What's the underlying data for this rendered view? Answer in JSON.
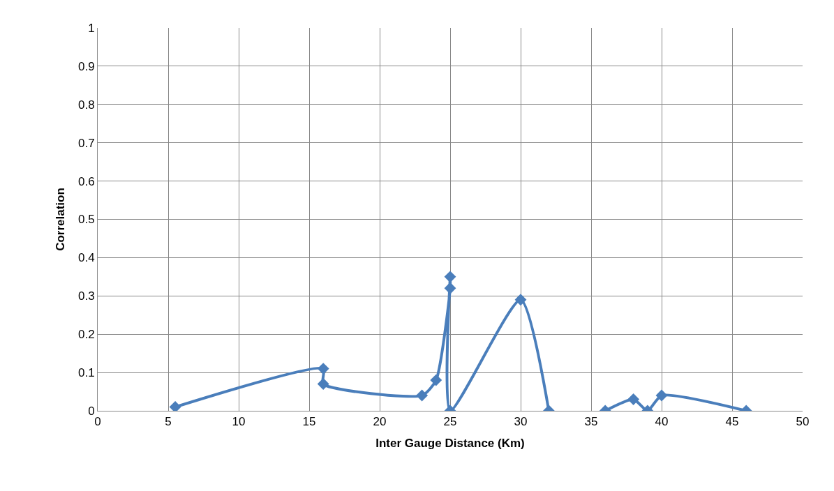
{
  "chart_data": {
    "type": "line",
    "xlabel": "Inter Gauge Distance (Km)",
    "ylabel": "Correlation",
    "series": [
      {
        "color": "#4a7ebb",
        "x": [
          5.5,
          16,
          16,
          23,
          24,
          25,
          25,
          25,
          30,
          32
        ],
        "values": [
          0.01,
          0.11,
          0.07,
          0.04,
          0.08,
          0.32,
          0.35,
          0,
          0.29,
          0
        ]
      },
      {
        "color": "#4a7ebb",
        "x": [
          36,
          38,
          39,
          40,
          46
        ],
        "values": [
          0,
          0.03,
          0,
          0.04,
          0
        ]
      }
    ],
    "xlim": [
      0,
      50
    ],
    "xticks": [
      0,
      5,
      10,
      15,
      20,
      25,
      30,
      35,
      40,
      45,
      50
    ],
    "ylim": [
      0,
      1
    ],
    "yticks": [
      0,
      0.1,
      0.2,
      0.3,
      0.4,
      0.5,
      0.6,
      0.7,
      0.8,
      0.9,
      1
    ],
    "grid": true,
    "marker": "diamond",
    "line_style": "solid",
    "legend": false
  }
}
